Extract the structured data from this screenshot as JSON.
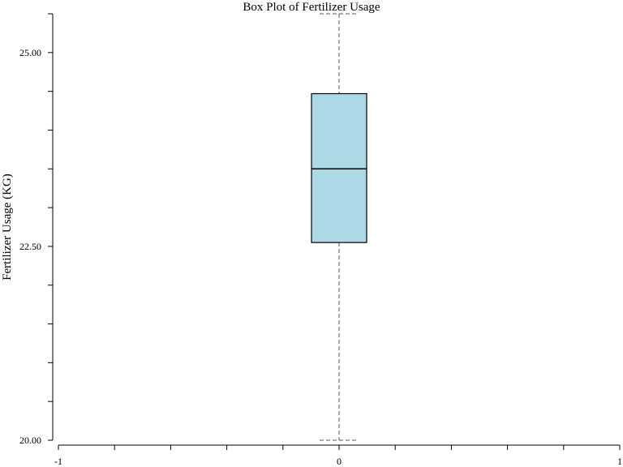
{
  "chart_data": {
    "type": "box",
    "title": "Box Plot of Fertilizer Usage",
    "xlabel": "",
    "ylabel": "Fertilizer Usage (KG)",
    "xlim": [
      -1,
      1
    ],
    "ylim": [
      20.0,
      25.5
    ],
    "x_ticks": [
      "-1",
      "0",
      "1"
    ],
    "y_ticks": [
      "20.00",
      "22.50",
      "25.00"
    ],
    "box_color": "#add8e6",
    "boxes": [
      {
        "x": 0,
        "whisker_low": 20.0,
        "q1": 22.55,
        "median": 23.5,
        "q3": 24.47,
        "whisker_high": 25.5
      }
    ]
  }
}
